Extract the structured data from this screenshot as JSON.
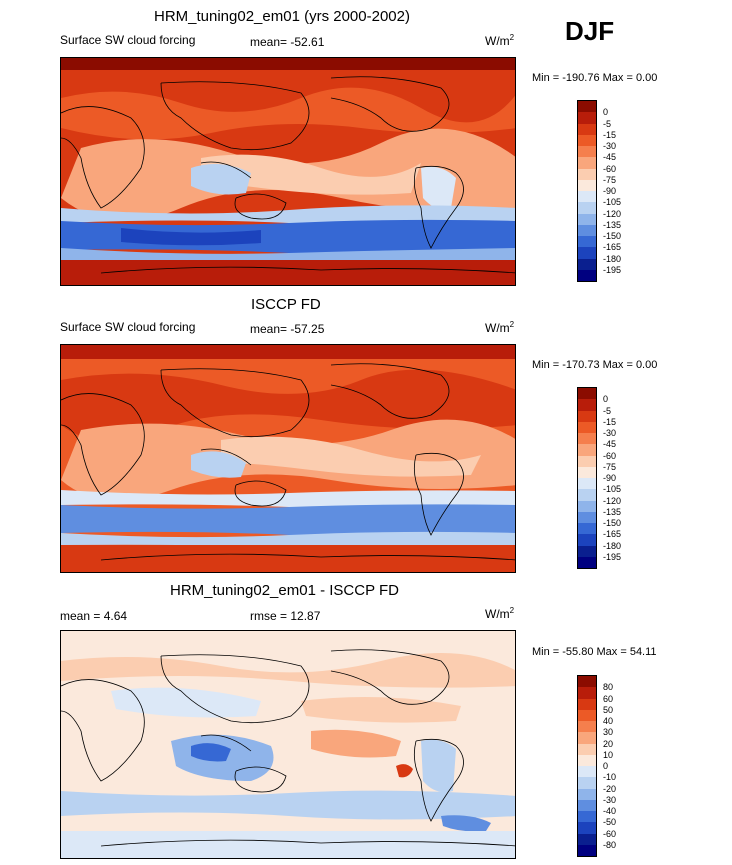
{
  "season": "DJF",
  "panels": [
    {
      "title": "HRM_tuning02_em01 (yrs 2000-2002)",
      "left_label": "Surface SW cloud forcing",
      "mean": "mean= -52.61",
      "units_base": "W/m",
      "units_exp": "2",
      "minmax": "Min = -190.76 Max =   0.00",
      "colorbar": {
        "labels": [
          "0",
          "-5",
          "-15",
          "-30",
          "-45",
          "-60",
          "-75",
          "-90",
          "-105",
          "-120",
          "-135",
          "-150",
          "-165",
          "-180",
          "-195"
        ],
        "colors": [
          "#8b0c00",
          "#b81d0a",
          "#d83912",
          "#ec5a26",
          "#f57f4d",
          "#f9a67c",
          "#fbcdb0",
          "#fbe9dc",
          "#dce8f7",
          "#b9d2f1",
          "#8fb4ea",
          "#5f8ee0",
          "#3668d4",
          "#1c43bd",
          "#0a1f8f",
          "#000080"
        ]
      }
    },
    {
      "title": "ISCCP FD",
      "left_label": "Surface SW cloud forcing",
      "mean": "mean= -57.25",
      "units_base": "W/m",
      "units_exp": "2",
      "minmax": "Min = -170.73 Max =   0.00",
      "colorbar": {
        "labels": [
          "0",
          "-5",
          "-15",
          "-30",
          "-45",
          "-60",
          "-75",
          "-90",
          "-105",
          "-120",
          "-135",
          "-150",
          "-165",
          "-180",
          "-195"
        ],
        "colors": [
          "#8b0c00",
          "#b81d0a",
          "#d83912",
          "#ec5a26",
          "#f57f4d",
          "#f9a67c",
          "#fbcdb0",
          "#fbe9dc",
          "#dce8f7",
          "#b9d2f1",
          "#8fb4ea",
          "#5f8ee0",
          "#3668d4",
          "#1c43bd",
          "#0a1f8f",
          "#000080"
        ]
      }
    },
    {
      "title": "HRM_tuning02_em01 - ISCCP FD",
      "left_label": "mean =   4.64",
      "mean": "rmse =  12.87",
      "units_base": "W/m",
      "units_exp": "2",
      "minmax": "Min = -55.80 Max =  54.11",
      "colorbar": {
        "labels": [
          "80",
          "60",
          "50",
          "40",
          "30",
          "20",
          "10",
          "0",
          "-10",
          "-20",
          "-30",
          "-40",
          "-50",
          "-60",
          "-80"
        ],
        "colors": [
          "#8b0c00",
          "#b81d0a",
          "#d83912",
          "#ec5a26",
          "#f57f4d",
          "#f9a67c",
          "#fbcdb0",
          "#fbe9dc",
          "#dce8f7",
          "#b9d2f1",
          "#8fb4ea",
          "#5f8ee0",
          "#3668d4",
          "#1c43bd",
          "#0a1f8f",
          "#000080"
        ]
      }
    }
  ]
}
